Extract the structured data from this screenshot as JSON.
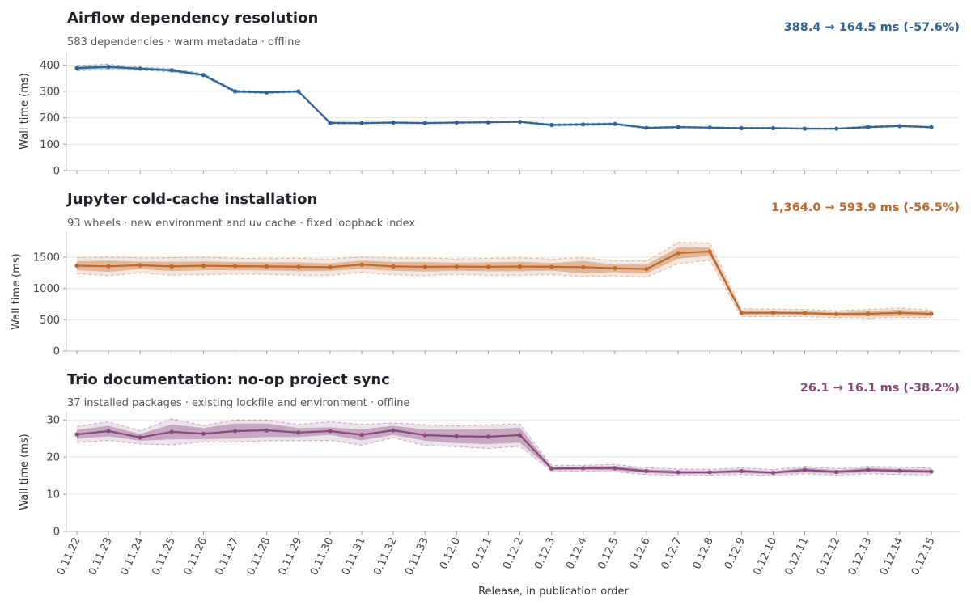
{
  "chart_data": [
    {
      "type": "line",
      "title": "Airflow dependency resolution",
      "subtitle": "583 dependencies · warm metadata · offline",
      "summary": "388.4 → 164.5 ms   (-57.6%)",
      "ylabel": "Wall time (ms)",
      "xlabel": "Release, in publication order",
      "color": "#2f6497",
      "ylim": [
        0,
        450
      ],
      "yticks": [
        0,
        100,
        200,
        300,
        400
      ],
      "grid": true,
      "categories": [
        "0.11.22",
        "0.11.23",
        "0.11.24",
        "0.11.25",
        "0.11.26",
        "0.11.27",
        "0.11.28",
        "0.11.29",
        "0.11.30",
        "0.11.31",
        "0.11.32",
        "0.11.33",
        "0.12.0",
        "0.12.1",
        "0.12.2",
        "0.12.3",
        "0.12.4",
        "0.12.5",
        "0.12.6",
        "0.12.7",
        "0.12.8",
        "0.12.9",
        "0.12.10",
        "0.12.11",
        "0.12.12",
        "0.12.13",
        "0.12.14",
        "0.12.15"
      ],
      "series": [
        {
          "values": [
            388.4,
            393,
            386,
            380,
            362,
            300,
            296,
            300,
            181,
            180,
            182,
            180,
            182,
            183,
            185,
            173,
            175,
            177,
            162,
            165,
            163,
            161,
            161,
            159,
            159,
            165,
            169,
            164.5
          ],
          "band_inner": [
            6,
            6,
            4,
            4,
            3,
            3,
            3,
            3,
            3,
            2,
            2,
            2,
            2,
            2,
            2,
            3,
            3,
            3,
            2,
            2,
            2,
            2,
            2,
            2,
            2,
            2,
            2,
            2
          ],
          "band_outer": [
            10,
            10,
            6,
            6,
            5,
            5,
            4,
            4,
            4,
            3,
            3,
            3,
            3,
            3,
            3,
            4,
            5,
            4,
            3,
            3,
            3,
            3,
            3,
            3,
            3,
            4,
            3,
            3
          ]
        }
      ]
    },
    {
      "type": "line",
      "title": "Jupyter cold-cache installation",
      "subtitle": "93 wheels · new environment and uv cache · fixed loopback index",
      "summary": "1,364.0 → 593.9 ms   (-56.5%)",
      "ylabel": "Wall time (ms)",
      "xlabel": "Release, in publication order",
      "color": "#c0692a",
      "ylim": [
        0,
        1900
      ],
      "yticks": [
        0,
        500,
        1000,
        1500
      ],
      "grid": true,
      "categories": [
        "0.11.22",
        "0.11.23",
        "0.11.24",
        "0.11.25",
        "0.11.26",
        "0.11.27",
        "0.11.28",
        "0.11.29",
        "0.11.30",
        "0.11.31",
        "0.11.32",
        "0.11.33",
        "0.12.0",
        "0.12.1",
        "0.12.2",
        "0.12.3",
        "0.12.4",
        "0.12.5",
        "0.12.6",
        "0.12.7",
        "0.12.8",
        "0.12.9",
        "0.12.10",
        "0.12.11",
        "0.12.12",
        "0.12.13",
        "0.12.14",
        "0.12.15"
      ],
      "series": [
        {
          "values": [
            1364,
            1355,
            1370,
            1352,
            1362,
            1356,
            1352,
            1346,
            1340,
            1380,
            1352,
            1345,
            1348,
            1345,
            1350,
            1345,
            1340,
            1322,
            1310,
            1565,
            1590,
            610,
            612,
            605,
            590,
            595,
            610,
            593.9
          ],
          "band_inner": [
            70,
            90,
            60,
            75,
            70,
            65,
            65,
            70,
            60,
            65,
            70,
            75,
            65,
            70,
            75,
            60,
            100,
            60,
            70,
            90,
            65,
            40,
            35,
            35,
            30,
            45,
            50,
            35
          ],
          "band_outer": [
            130,
            150,
            120,
            140,
            140,
            125,
            125,
            135,
            130,
            125,
            135,
            140,
            125,
            135,
            140,
            125,
            150,
            120,
            130,
            170,
            140,
            65,
            60,
            60,
            55,
            70,
            75,
            60
          ]
        }
      ]
    },
    {
      "type": "line",
      "title": "Trio documentation: no-op project sync",
      "subtitle": "37 installed packages · existing lockfile and environment · offline",
      "summary": "26.1 → 16.1 ms   (-38.2%)",
      "ylabel": "Wall time (ms)",
      "xlabel": "Release, in publication order",
      "color": "#8a4a7d",
      "ylim": [
        0,
        32
      ],
      "yticks": [
        0,
        10,
        20,
        30
      ],
      "grid": true,
      "categories": [
        "0.11.22",
        "0.11.23",
        "0.11.24",
        "0.11.25",
        "0.11.26",
        "0.11.27",
        "0.11.28",
        "0.11.29",
        "0.11.30",
        "0.11.31",
        "0.11.32",
        "0.11.33",
        "0.12.0",
        "0.12.1",
        "0.12.2",
        "0.12.3",
        "0.12.4",
        "0.12.5",
        "0.12.6",
        "0.12.7",
        "0.12.8",
        "0.12.9",
        "0.12.10",
        "0.12.11",
        "0.12.12",
        "0.12.13",
        "0.12.14",
        "0.12.15"
      ],
      "series": [
        {
          "values": [
            26.1,
            27.0,
            25.3,
            26.8,
            26.3,
            27.0,
            27.2,
            26.6,
            27.0,
            26.0,
            27.2,
            25.9,
            25.6,
            25.5,
            25.9,
            16.9,
            17.0,
            17.0,
            16.2,
            15.9,
            15.9,
            16.2,
            15.8,
            16.5,
            16.0,
            16.5,
            16.3,
            16.1
          ],
          "band_inner": [
            1.2,
            1.4,
            0.9,
            2.0,
            1.5,
            2.0,
            1.8,
            1.2,
            1.0,
            1.5,
            1.2,
            1.5,
            1.8,
            2.0,
            2.0,
            0.4,
            0.5,
            0.6,
            0.5,
            0.5,
            0.4,
            0.5,
            0.4,
            0.6,
            0.5,
            0.6,
            0.5,
            0.5
          ],
          "band_outer": [
            2.2,
            2.5,
            1.8,
            3.5,
            2.2,
            3.0,
            2.8,
            2.2,
            2.5,
            2.8,
            2.0,
            2.8,
            2.8,
            3.2,
            3.0,
            0.8,
            0.8,
            1.0,
            0.9,
            0.9,
            0.8,
            0.9,
            0.8,
            1.0,
            0.9,
            1.0,
            1.0,
            0.9
          ]
        }
      ]
    }
  ]
}
